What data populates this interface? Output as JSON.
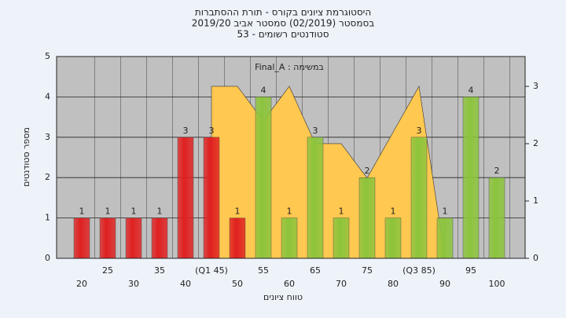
{
  "chart_data": {
    "type": "bar",
    "title": "היסטוגרמת ציונים בקורס - תורת ההסתברות",
    "subtitle": "בסמסטר (02/2019) סמסטר אביב 2019/20",
    "subtitle2": "סטודנטים רשומים - 53",
    "annotation": "Final_A : במשימה",
    "y_label": "מספר סטודנטים",
    "x_label": "טווח ציונים",
    "categories": [
      "20",
      "25",
      "30",
      "35",
      "40",
      "(Q1 45)",
      "50",
      "55",
      "60",
      "65",
      "70",
      "75",
      "80",
      "(Q3 85)",
      "90",
      "95",
      "100"
    ],
    "values": [
      1,
      1,
      1,
      1,
      3,
      3,
      1,
      4,
      1,
      3,
      1,
      2,
      1,
      3,
      1,
      4,
      2
    ],
    "colors": [
      "#e02020",
      "#e02020",
      "#e02020",
      "#e02020",
      "#e02020",
      "#e02020",
      "#e02020",
      "#8cc43c",
      "#8cc43c",
      "#8cc43c",
      "#8cc43c",
      "#8cc43c",
      "#8cc43c",
      "#8cc43c",
      "#8cc43c",
      "#8cc43c",
      "#8cc43c"
    ],
    "area_values": [
      null,
      null,
      null,
      null,
      null,
      3,
      3,
      2.4,
      3,
      2,
      2,
      1.4,
      2.2,
      3,
      0,
      null,
      null
    ],
    "area_color": "#ffc850",
    "ylim": [
      0,
      5
    ],
    "yticks": [
      0,
      1,
      2,
      3,
      4,
      5
    ],
    "y2lim": [
      0,
      3.52
    ],
    "y2ticks": [
      0,
      1,
      2,
      3
    ],
    "grid": true
  }
}
